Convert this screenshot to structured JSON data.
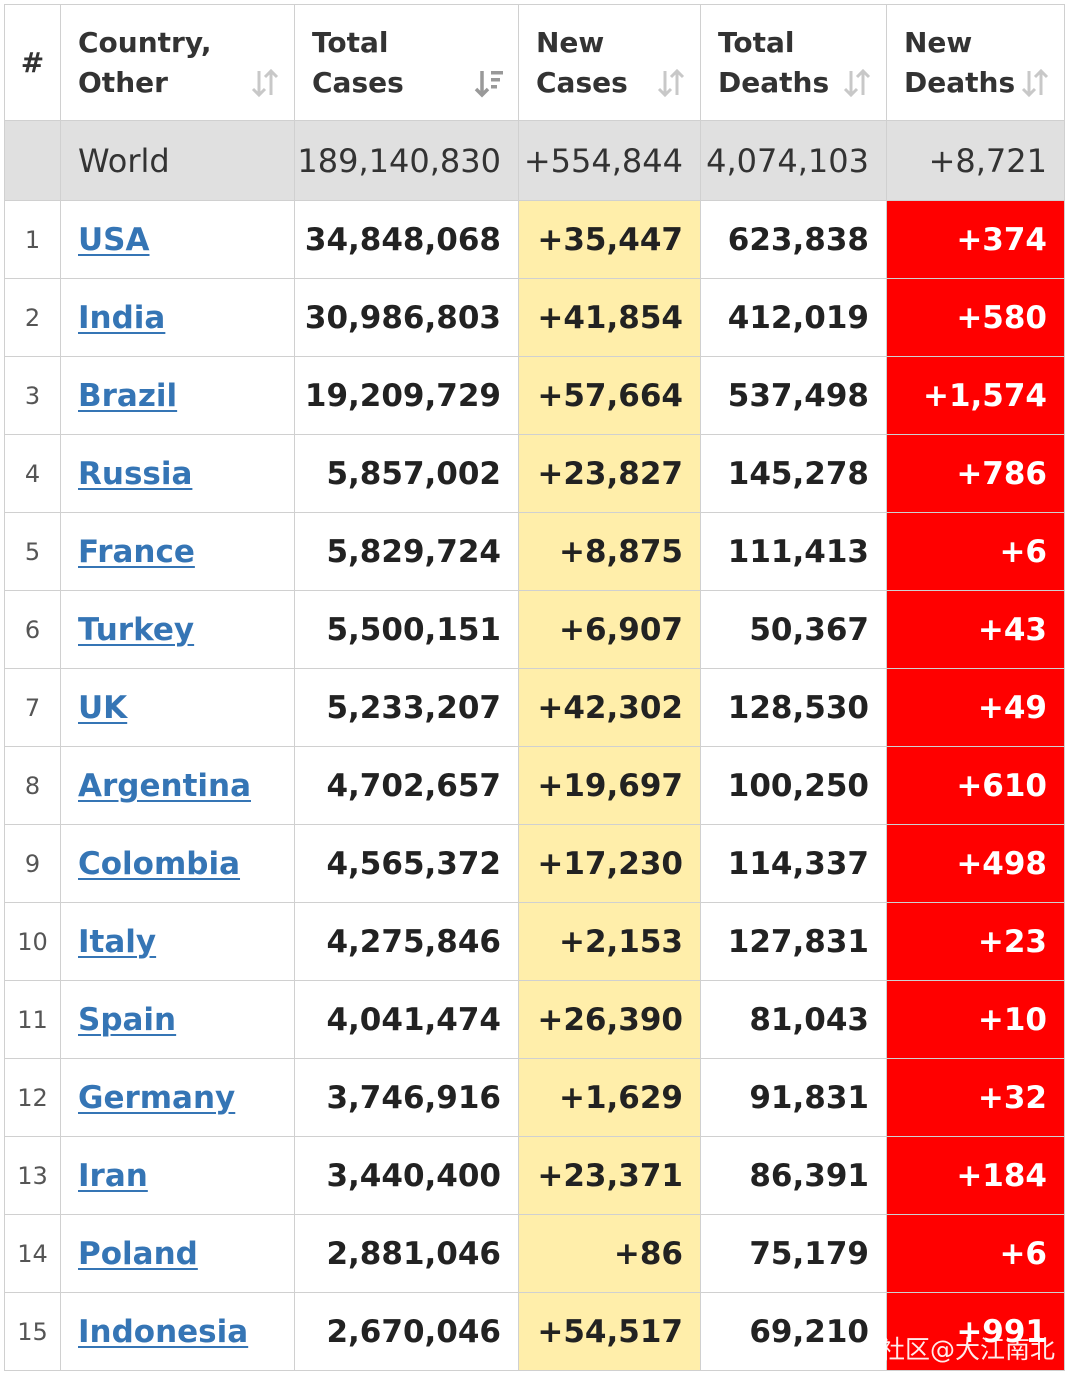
{
  "headers": {
    "rank": "#",
    "country_1": "Country,",
    "country_2": "Other",
    "total_cases_1": "Total",
    "total_cases_2": "Cases",
    "new_cases_1": "New",
    "new_cases_2": "Cases",
    "total_deaths_1": "Total",
    "total_deaths_2": "Deaths",
    "new_deaths_1": "New",
    "new_deaths_2": "Deaths"
  },
  "world": {
    "country": "World",
    "total_cases": "189,140,830",
    "new_cases": "+554,844",
    "total_deaths": "4,074,103",
    "new_deaths": "+8,721"
  },
  "rows": [
    {
      "rank": "1",
      "country": "USA",
      "total_cases": "34,848,068",
      "new_cases": "+35,447",
      "total_deaths": "623,838",
      "new_deaths": "+374"
    },
    {
      "rank": "2",
      "country": "India",
      "total_cases": "30,986,803",
      "new_cases": "+41,854",
      "total_deaths": "412,019",
      "new_deaths": "+580"
    },
    {
      "rank": "3",
      "country": "Brazil",
      "total_cases": "19,209,729",
      "new_cases": "+57,664",
      "total_deaths": "537,498",
      "new_deaths": "+1,574"
    },
    {
      "rank": "4",
      "country": "Russia",
      "total_cases": "5,857,002",
      "new_cases": "+23,827",
      "total_deaths": "145,278",
      "new_deaths": "+786"
    },
    {
      "rank": "5",
      "country": "France",
      "total_cases": "5,829,724",
      "new_cases": "+8,875",
      "total_deaths": "111,413",
      "new_deaths": "+6"
    },
    {
      "rank": "6",
      "country": "Turkey",
      "total_cases": "5,500,151",
      "new_cases": "+6,907",
      "total_deaths": "50,367",
      "new_deaths": "+43"
    },
    {
      "rank": "7",
      "country": "UK",
      "total_cases": "5,233,207",
      "new_cases": "+42,302",
      "total_deaths": "128,530",
      "new_deaths": "+49"
    },
    {
      "rank": "8",
      "country": "Argentina",
      "total_cases": "4,702,657",
      "new_cases": "+19,697",
      "total_deaths": "100,250",
      "new_deaths": "+610"
    },
    {
      "rank": "9",
      "country": "Colombia",
      "total_cases": "4,565,372",
      "new_cases": "+17,230",
      "total_deaths": "114,337",
      "new_deaths": "+498"
    },
    {
      "rank": "10",
      "country": "Italy",
      "total_cases": "4,275,846",
      "new_cases": "+2,153",
      "total_deaths": "127,831",
      "new_deaths": "+23"
    },
    {
      "rank": "11",
      "country": "Spain",
      "total_cases": "4,041,474",
      "new_cases": "+26,390",
      "total_deaths": "81,043",
      "new_deaths": "+10"
    },
    {
      "rank": "12",
      "country": "Germany",
      "total_cases": "3,746,916",
      "new_cases": "+1,629",
      "total_deaths": "91,831",
      "new_deaths": "+32"
    },
    {
      "rank": "13",
      "country": "Iran",
      "total_cases": "3,440,400",
      "new_cases": "+23,371",
      "total_deaths": "86,391",
      "new_deaths": "+184"
    },
    {
      "rank": "14",
      "country": "Poland",
      "total_cases": "2,881,046",
      "new_cases": "+86",
      "total_deaths": "75,179",
      "new_deaths": "+6"
    },
    {
      "rank": "15",
      "country": "Indonesia",
      "total_cases": "2,670,046",
      "new_cases": "+54,517",
      "total_deaths": "69,210",
      "new_deaths": "+991"
    }
  ],
  "watermark": "社区@大江南北",
  "colors": {
    "link": "#3575b5",
    "new_cases_bg": "#ffeeaa",
    "new_deaths_bg": "#ff0000",
    "world_row_bg": "#e0e0e0",
    "sort_icon": "#c8c8c8",
    "sort_icon_active": "#999999"
  },
  "icons": {
    "sort_neutral": "sort-arrows-icon",
    "sort_active": "sort-descending-icon"
  }
}
